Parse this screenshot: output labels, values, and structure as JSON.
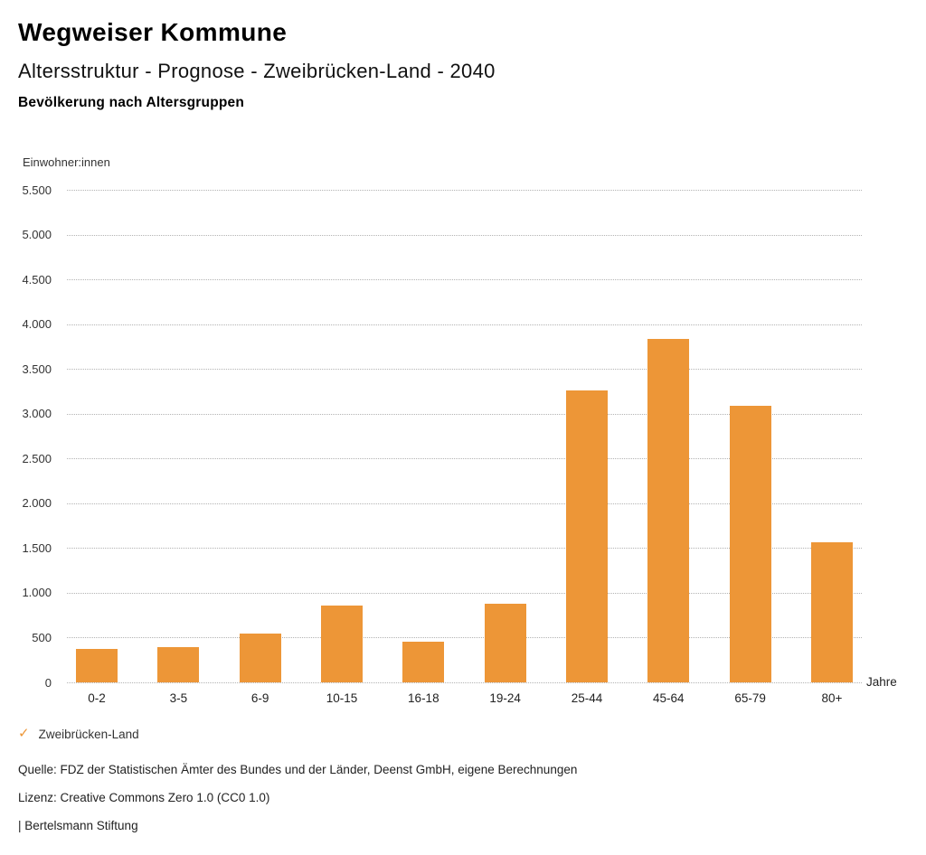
{
  "header": {
    "brand": "Wegweiser Kommune",
    "title": "Altersstruktur - Prognose - Zweibrücken-Land - 2040",
    "subtitle": "Bevölkerung nach Altersgruppen"
  },
  "chart_data": {
    "type": "bar",
    "title": "Bevölkerung nach Altersgruppen",
    "ylabel": "Einwohner:innen",
    "xlabel": "Jahre",
    "categories": [
      "0-2",
      "3-5",
      "6-9",
      "10-15",
      "16-18",
      "19-24",
      "25-44",
      "45-64",
      "65-79",
      "80+"
    ],
    "series": [
      {
        "name": "Zweibrücken-Land",
        "values": [
          370,
          390,
          540,
          860,
          450,
          880,
          3260,
          3830,
          3090,
          1560
        ]
      }
    ],
    "ylim": [
      0,
      5500
    ],
    "ytick_step": 500,
    "ytick_labels": [
      "0",
      "500",
      "1.000",
      "1.500",
      "2.000",
      "2.500",
      "3.000",
      "3.500",
      "4.000",
      "4.500",
      "5.000",
      "5.500"
    ],
    "grid": "horizontal-dotted",
    "legend_position": "bottom-left",
    "bar_color": "#ED9637"
  },
  "legend": {
    "check_icon": "✓",
    "label": "Zweibrücken-Land",
    "accent_color": "#ED9637"
  },
  "footer": {
    "source": "Quelle: FDZ der Statistischen Ämter des Bundes und der Länder, Deenst GmbH, eigene Berechnungen",
    "license": "Lizenz: Creative Commons Zero 1.0 (CC0 1.0)",
    "attribution": "| Bertelsmann Stiftung"
  }
}
